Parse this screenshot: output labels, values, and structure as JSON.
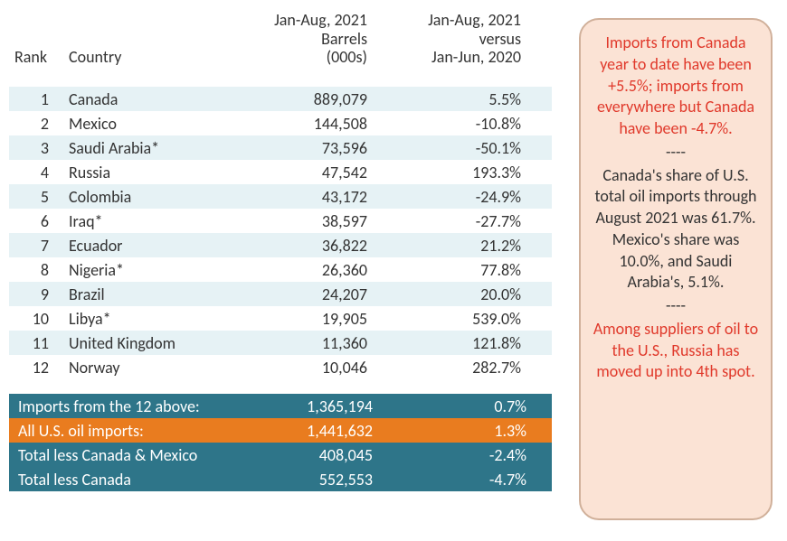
{
  "headers": {
    "rank": "Rank",
    "country": "Country",
    "barrels_l1": "Jan-Aug, 2021",
    "barrels_l2": "Barrels",
    "barrels_l3": "(000s)",
    "change_l1": "Jan-Aug, 2021",
    "change_l2": "versus",
    "change_l3": "Jan-Jun, 2020"
  },
  "stripe_color": "#e6f2f5",
  "rows": [
    {
      "rank": "1",
      "country": "Canada",
      "barrels": "889,079",
      "change": "5.5%"
    },
    {
      "rank": "2",
      "country": "Mexico",
      "barrels": "144,508",
      "change": "-10.8%"
    },
    {
      "rank": "3",
      "country": "Saudi Arabia*",
      "barrels": "73,596",
      "change": "-50.1%"
    },
    {
      "rank": "4",
      "country": "Russia",
      "barrels": "47,542",
      "change": "193.3%"
    },
    {
      "rank": "5",
      "country": "Colombia",
      "barrels": "43,172",
      "change": "-24.9%"
    },
    {
      "rank": "6",
      "country": "Iraq*",
      "barrels": "38,597",
      "change": "-27.7%"
    },
    {
      "rank": "7",
      "country": "Ecuador",
      "barrels": "36,822",
      "change": "21.2%"
    },
    {
      "rank": "8",
      "country": "Nigeria*",
      "barrels": "26,360",
      "change": "77.8%"
    },
    {
      "rank": "9",
      "country": "Brazil",
      "barrels": "24,207",
      "change": "20.0%"
    },
    {
      "rank": "10",
      "country": "Libya*",
      "barrels": "19,905",
      "change": "539.0%"
    },
    {
      "rank": "11",
      "country": "United Kingdom",
      "barrels": "11,360",
      "change": "121.8%"
    },
    {
      "rank": "12",
      "country": "Norway",
      "barrels": "10,046",
      "change": "282.7%"
    }
  ],
  "summary": [
    {
      "label": "Imports from the 12 above:",
      "barrels": "1,365,194",
      "change": "0.7%",
      "bg": "#2e7589"
    },
    {
      "label": "All U.S. oil imports:",
      "barrels": "1,441,632",
      "change": "1.3%",
      "bg": "#e97c1f"
    },
    {
      "label": "Total less Canada & Mexico",
      "barrels": "408,045",
      "change": "-2.4%",
      "bg": "#2e7589"
    },
    {
      "label": "Total less Canada",
      "barrels": "552,553",
      "change": "-4.7%",
      "bg": "#2e7589"
    }
  ],
  "callout": {
    "bg": "#fbe3d5",
    "p1": "Imports from Canada year to date have been +5.5%; imports from everywhere but Canada have been -4.7%.",
    "sep": "----",
    "p2": "Canada's share of U.S. total oil imports through August 2021 was 61.7%. Mexico's share was 10.0%, and Saudi Arabia's, 5.1%.",
    "p3": "Among suppliers of oil to the U.S., Russia has moved up into 4th spot."
  }
}
